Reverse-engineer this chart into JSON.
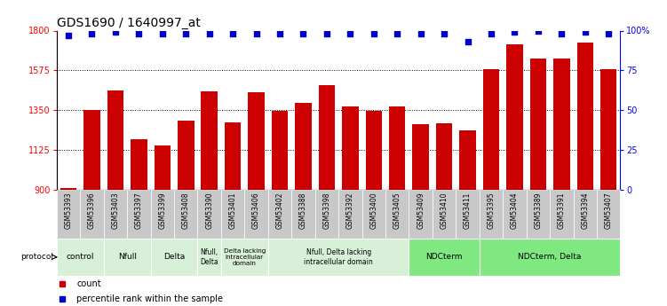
{
  "title": "GDS1690 / 1640997_at",
  "samples": [
    "GSM53393",
    "GSM53396",
    "GSM53403",
    "GSM53397",
    "GSM53399",
    "GSM53408",
    "GSM53390",
    "GSM53401",
    "GSM53406",
    "GSM53402",
    "GSM53388",
    "GSM53398",
    "GSM53392",
    "GSM53400",
    "GSM53405",
    "GSM53409",
    "GSM53410",
    "GSM53411",
    "GSM53395",
    "GSM53404",
    "GSM53389",
    "GSM53391",
    "GSM53394",
    "GSM53407"
  ],
  "counts": [
    912,
    1350,
    1460,
    1185,
    1150,
    1290,
    1455,
    1280,
    1450,
    1345,
    1390,
    1490,
    1370,
    1345,
    1370,
    1270,
    1275,
    1235,
    1580,
    1720,
    1640,
    1640,
    1730,
    1580
  ],
  "percentiles": [
    97,
    98,
    99,
    98,
    98,
    98,
    98,
    98,
    98,
    98,
    98,
    98,
    98,
    98,
    98,
    98,
    98,
    93,
    98,
    99,
    100,
    98,
    99,
    98
  ],
  "ylim_left": [
    900,
    1800
  ],
  "ylim_right": [
    0,
    100
  ],
  "yticks_left": [
    900,
    1125,
    1350,
    1575,
    1800
  ],
  "yticks_right": [
    0,
    25,
    50,
    75,
    100
  ],
  "bar_color": "#cc0000",
  "dot_color": "#0000cc",
  "protocol_groups": [
    {
      "label": "control",
      "start": 0,
      "end": 2,
      "color": "#d8f0d8"
    },
    {
      "label": "Nfull",
      "start": 2,
      "end": 4,
      "color": "#d8f0d8"
    },
    {
      "label": "Delta",
      "start": 4,
      "end": 6,
      "color": "#d8f0d8"
    },
    {
      "label": "Nfull,\nDelta",
      "start": 6,
      "end": 7,
      "color": "#d8f0d8"
    },
    {
      "label": "Delta lacking\nintracellular\ndomain",
      "start": 7,
      "end": 9,
      "color": "#d8f0d8"
    },
    {
      "label": "Nfull, Delta lacking\nintracellular domain",
      "start": 9,
      "end": 15,
      "color": "#d8f0d8"
    },
    {
      "label": "NDCterm",
      "start": 15,
      "end": 18,
      "color": "#80e880"
    },
    {
      "label": "NDCterm, Delta",
      "start": 18,
      "end": 24,
      "color": "#80e880"
    }
  ],
  "legend_count_color": "#cc0000",
  "legend_dot_color": "#0000cc",
  "title_fontsize": 10,
  "tick_fontsize": 7,
  "sample_fontsize": 5.5,
  "proto_fontsize": 6.5
}
